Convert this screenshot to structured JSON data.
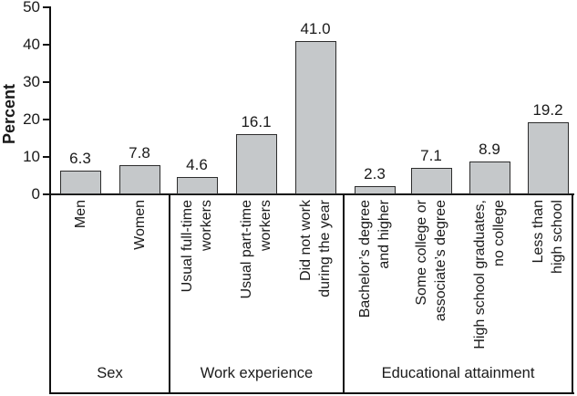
{
  "chart_data": {
    "type": "bar",
    "title": "",
    "ylabel": "Percent",
    "xlabel": "",
    "ylim": [
      0,
      50
    ],
    "yticks": [
      0,
      10,
      20,
      30,
      40,
      50
    ],
    "grid": false,
    "legend": "none",
    "bar_fill_color": "#c5c8ca",
    "bar_border_color": "#2d2d2d",
    "groups": [
      {
        "label": "Sex",
        "bars": [
          {
            "label": "Men",
            "value": 6.3,
            "value_label": "6.3"
          },
          {
            "label": "Women",
            "value": 7.8,
            "value_label": "7.8"
          }
        ]
      },
      {
        "label": "Work experience",
        "bars": [
          {
            "label": "Usual full-time\nworkers",
            "value": 4.6,
            "value_label": "4.6"
          },
          {
            "label": "Usual part-time\nworkers",
            "value": 16.1,
            "value_label": "16.1"
          },
          {
            "label": "Did not work\nduring the year",
            "value": 41.0,
            "value_label": "41.0"
          }
        ]
      },
      {
        "label": "Educational attainment",
        "bars": [
          {
            "label": "Bachelor’s degree\nand higher",
            "value": 2.3,
            "value_label": "2.3"
          },
          {
            "label": "Some college or\nassociate’s degree",
            "value": 7.1,
            "value_label": "7.1"
          },
          {
            "label": "High school graduates,\nno college",
            "value": 8.9,
            "value_label": "8.9"
          },
          {
            "label": "Less than\nhigh school",
            "value": 19.2,
            "value_label": "19.2"
          }
        ]
      }
    ]
  }
}
